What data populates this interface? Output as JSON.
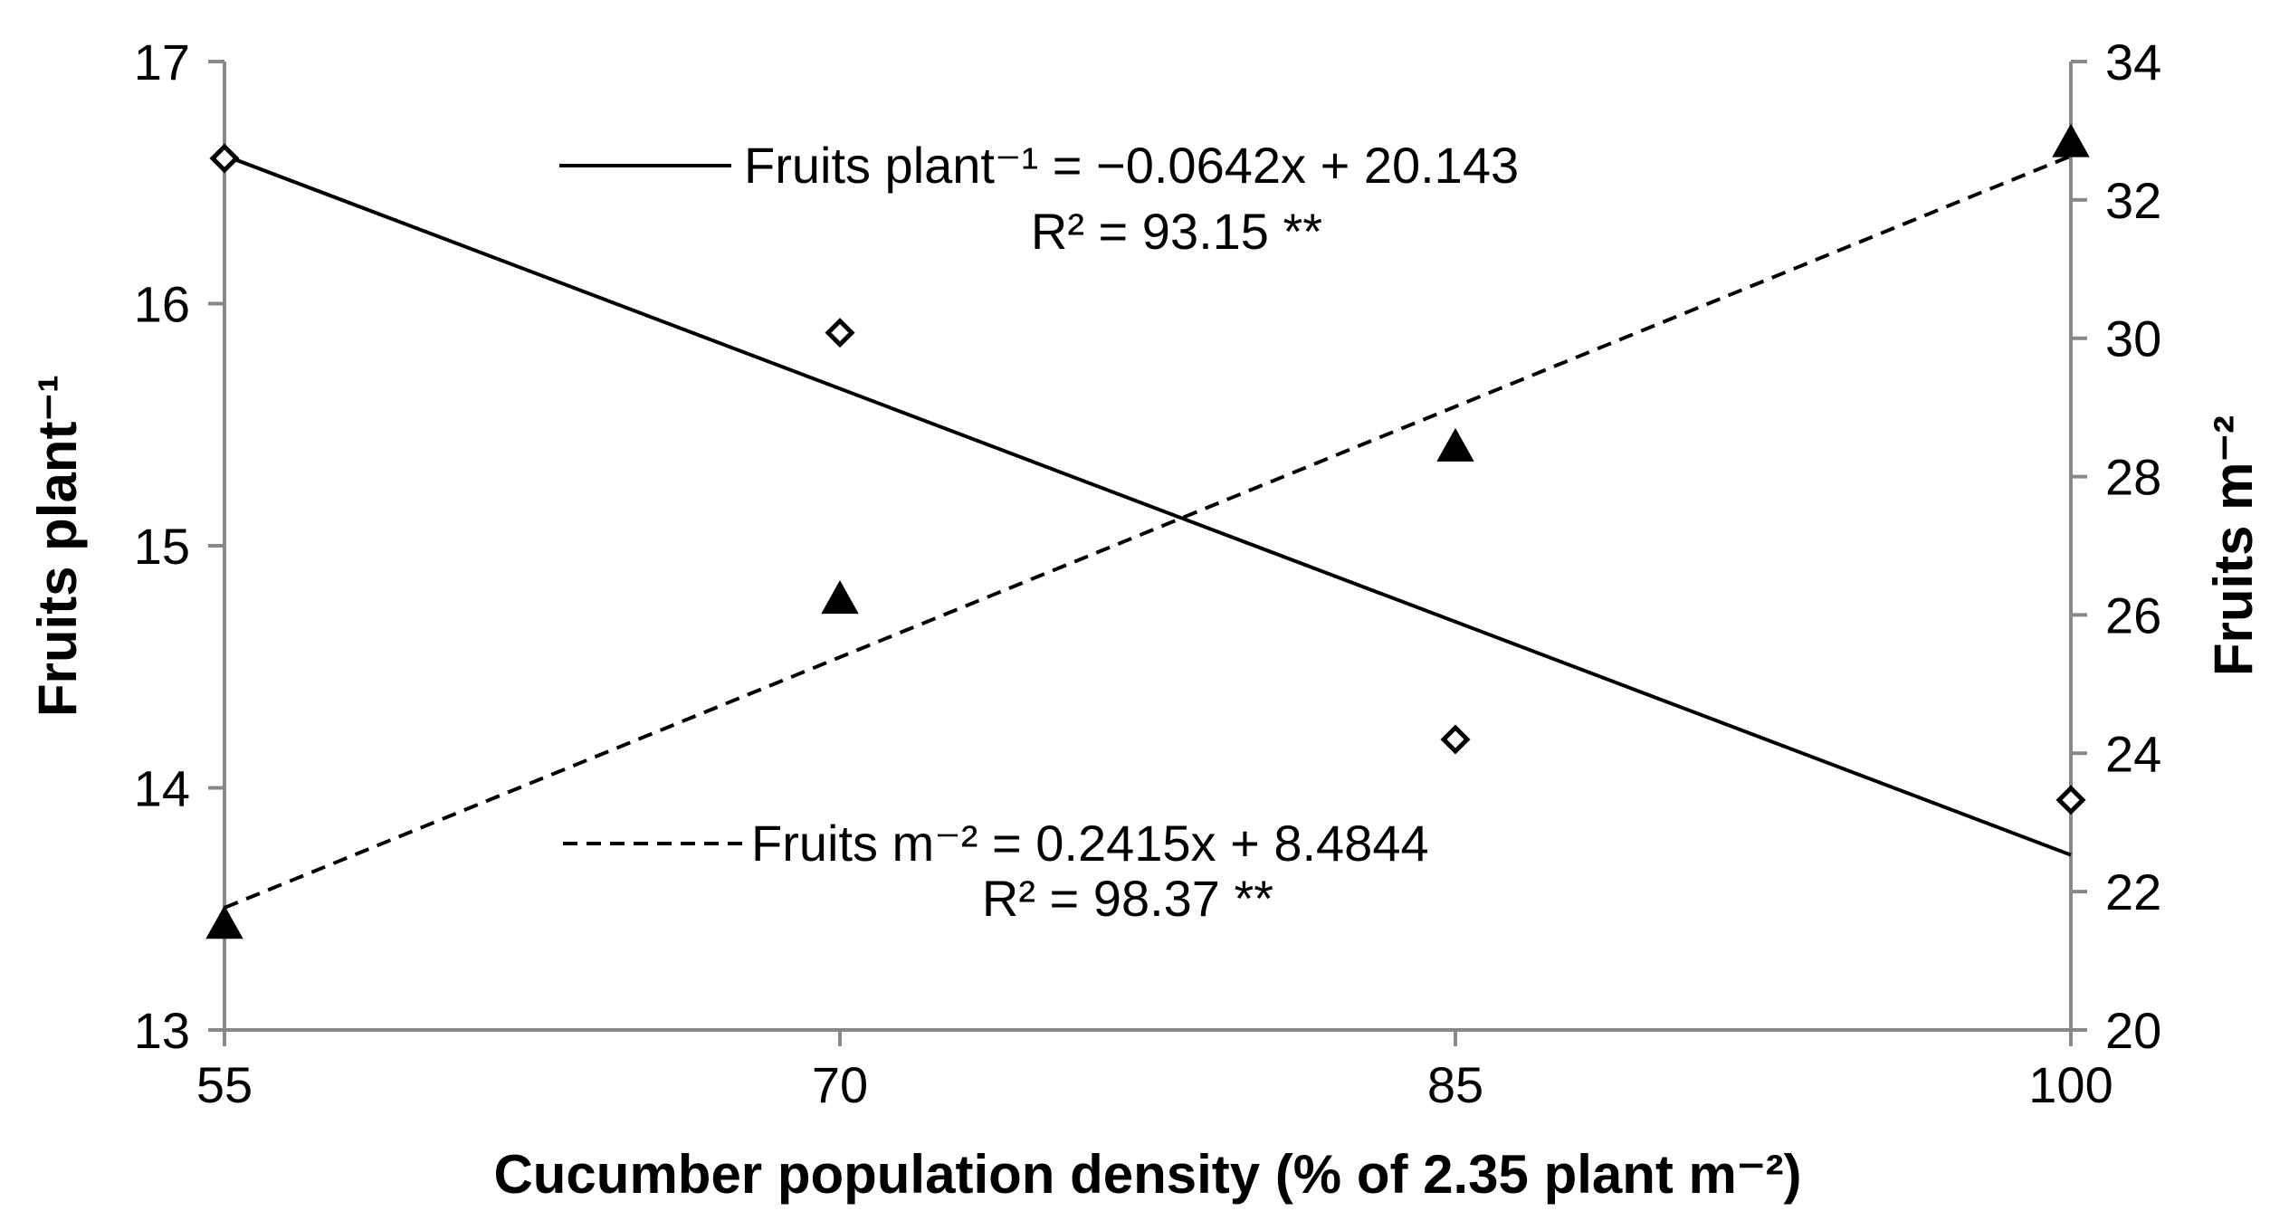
{
  "chart_data": {
    "type": "scatter",
    "xlabel": "Cucumber population density (% of 2.35 plant m⁻²)",
    "ylabel_left": "Fruits plant⁻¹",
    "ylabel_right": "Fruits m⁻²",
    "x_ticks": [
      "55",
      "70",
      "85",
      "100"
    ],
    "y_left_ticks": [
      "13",
      "14",
      "15",
      "16",
      "17"
    ],
    "y_right_ticks": [
      "20",
      "22",
      "24",
      "26",
      "28",
      "30",
      "32",
      "34"
    ],
    "xlim": [
      55,
      100
    ],
    "ylim_left": [
      13,
      17
    ],
    "ylim_right": [
      20,
      34
    ],
    "grid": false,
    "series": [
      {
        "axis": "left",
        "marker": "diamond-open",
        "x": [
          55,
          70,
          85,
          100
        ],
        "y": [
          16.6,
          15.88,
          14.2,
          13.95
        ],
        "trend": {
          "slope": -0.0642,
          "intercept": 20.143,
          "style": "solid",
          "equation": "Fruits plant⁻¹ = −0.0642x + 20.143",
          "r2": "R² = 93.15 **"
        }
      },
      {
        "axis": "right",
        "marker": "triangle-filled",
        "x": [
          55,
          70,
          85,
          100
        ],
        "y": [
          21.5,
          26.2,
          28.4,
          32.8
        ],
        "trend": {
          "slope": 0.2415,
          "intercept": 8.4844,
          "style": "dashed",
          "equation": "Fruits m⁻² = 0.2415x + 8.4844",
          "r2": "R² = 98.37 **"
        }
      }
    ]
  }
}
